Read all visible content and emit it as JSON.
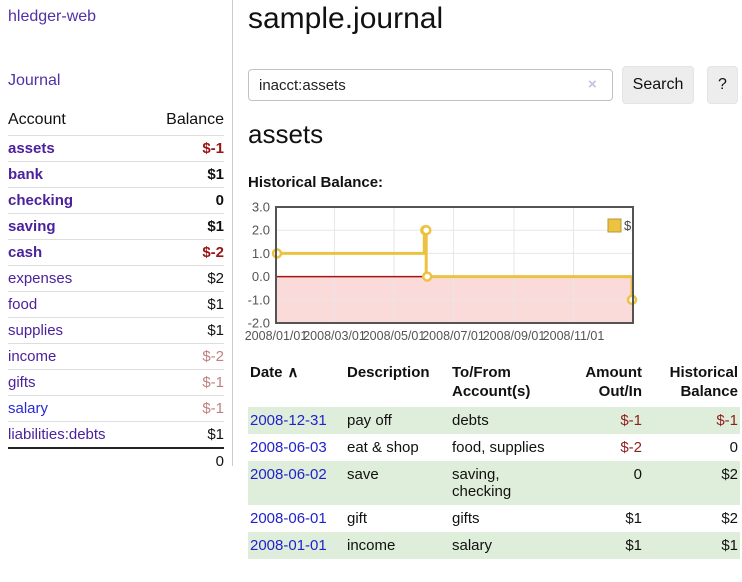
{
  "app_title": "hledger-web",
  "sidebar": {
    "journal_link": "Journal",
    "accounts_table": {
      "account_header": "Account",
      "balance_header": "Balance",
      "rows": [
        {
          "account": "assets",
          "balance": "$-1",
          "level": 1,
          "in_view": true,
          "balance_style": "neg-strong"
        },
        {
          "account": "bank",
          "balance": "$1",
          "level": 2,
          "in_view": true,
          "balance_style": "pos"
        },
        {
          "account": "checking",
          "balance": "0",
          "level": 3,
          "in_view": true,
          "balance_style": "pos"
        },
        {
          "account": "saving",
          "balance": "$1",
          "level": 3,
          "in_view": true,
          "balance_style": "pos"
        },
        {
          "account": "cash",
          "balance": "$-2",
          "level": 2,
          "in_view": true,
          "balance_style": "neg-strong"
        },
        {
          "account": "expenses",
          "balance": "$2",
          "level": 1,
          "in_view": false,
          "balance_style": "pos"
        },
        {
          "account": "food",
          "balance": "$1",
          "level": 2,
          "in_view": false,
          "balance_style": "pos"
        },
        {
          "account": "supplies",
          "balance": "$1",
          "level": 2,
          "in_view": false,
          "balance_style": "pos"
        },
        {
          "account": "income",
          "balance": "$-2",
          "level": 1,
          "in_view": false,
          "balance_style": "neg-soft"
        },
        {
          "account": "gifts",
          "balance": "$-1",
          "level": 2,
          "in_view": false,
          "balance_style": "neg-soft"
        },
        {
          "account": "salary",
          "balance": "$-1",
          "level": 2,
          "in_view": false,
          "balance_style": "neg-soft",
          "link_style": "blue"
        },
        {
          "account": "liabilities:debts",
          "balance": "$1",
          "level": 1,
          "in_view": false,
          "balance_style": "pos"
        }
      ],
      "total": "0"
    }
  },
  "main": {
    "title": "sample.journal",
    "search": {
      "value": "inacct:assets",
      "button_label": "Search",
      "help_label": "?"
    },
    "account_heading": "assets",
    "chart_label": "Historical Balance:",
    "chart_data": {
      "type": "line",
      "title": "Historical Balance",
      "legend": [
        {
          "label": "$",
          "color": "#edc240"
        }
      ],
      "x_ticks": [
        "2008/01/01",
        "2008/03/01",
        "2008/05/01",
        "2008/07/01",
        "2008/09/01",
        "2008/11/01"
      ],
      "y_ticks": [
        3.0,
        2.0,
        1.0,
        0.0,
        -1.0,
        -2.0
      ],
      "ylim": [
        -2,
        3
      ],
      "x_range": [
        "2008-01-01",
        "2009-01-01"
      ],
      "step": true,
      "points": [
        {
          "date": "2008-01-01",
          "value": 1
        },
        {
          "date": "2008-06-01",
          "value": 2
        },
        {
          "date": "2008-06-02",
          "value": 2
        },
        {
          "date": "2008-06-03",
          "value": 0
        },
        {
          "date": "2008-12-31",
          "value": -1
        }
      ],
      "series_color": "#edc240",
      "negative_fill": "#fbdada",
      "zero_line_color": "#aa1111",
      "grid_color": "#e7e7e7",
      "border_color": "#545454",
      "tick_text_color": "#545454"
    },
    "register_table": {
      "headers": {
        "date": "Date",
        "description": "Description",
        "to_from": "To/From\nAccount(s)",
        "amount": "Amount\nOut/In",
        "balance": "Historical\nBalance"
      },
      "rows": [
        {
          "date": "2008-12-31",
          "description": "pay off",
          "to_from": "debts",
          "amount": "$-1",
          "balance": "$-1"
        },
        {
          "date": "2008-06-03",
          "description": "eat & shop",
          "to_from": "food, supplies",
          "amount": "$-2",
          "balance": "0"
        },
        {
          "date": "2008-06-02",
          "description": "save",
          "to_from": "saving,\nchecking",
          "amount": "0",
          "balance": "$2"
        },
        {
          "date": "2008-06-01",
          "description": "gift",
          "to_from": "gifts",
          "amount": "$1",
          "balance": "$2"
        },
        {
          "date": "2008-01-01",
          "description": "income",
          "to_from": "salary",
          "amount": "$1",
          "balance": "$1"
        }
      ]
    }
  },
  "icons": {
    "clear": "×",
    "sort_asc": "∧"
  },
  "colors": {
    "link_purple": "#5230a5",
    "account_purple": "#4c219c",
    "date_blue": "#2222cc",
    "negative_strong": "#9b1414",
    "negative_soft": "#c08080",
    "table_negative": "#8e1f1f",
    "stripe_green": "#dfeeda",
    "series_yellow": "#edc240"
  }
}
